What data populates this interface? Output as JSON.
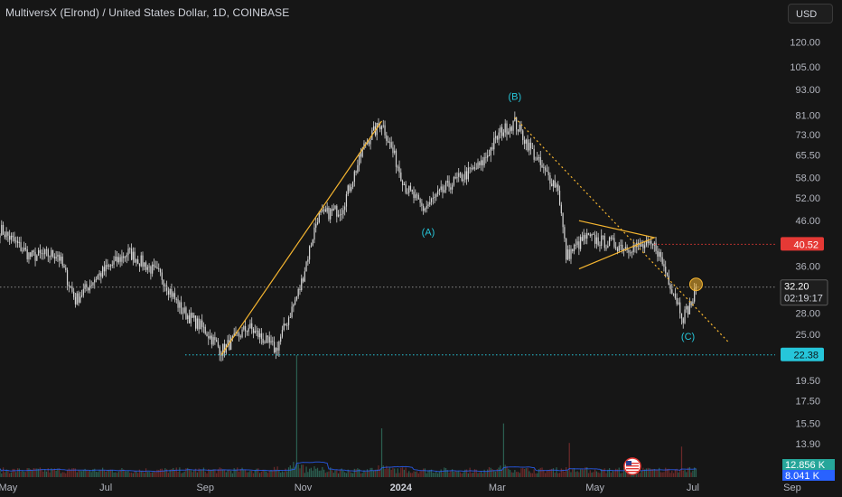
{
  "header": {
    "title": "MultiversX (Elrond) / United States Dollar, 1D, COINBASE",
    "currency_button": "USD"
  },
  "colors": {
    "background": "#161616",
    "candle": "#d6d6d6",
    "drawing": "#f5b530",
    "red_level": "#e53935",
    "cyan_level": "#26c6da",
    "wave_label": "#26c6da"
  },
  "chart_data": {
    "type": "candlestick",
    "symbol": "MultiversX (Elrond) / United States Dollar",
    "interval": "1D",
    "exchange": "COINBASE",
    "scale": "log",
    "ylim": [
      11.5,
      130
    ],
    "y_ticks": [
      "120.00",
      "105.00",
      "93.00",
      "81.00",
      "73.00",
      "65.50",
      "58.00",
      "52.00",
      "46.00",
      "40.52",
      "36.00",
      "32.20",
      "28.00",
      "25.00",
      "22.38",
      "19.50",
      "17.50",
      "15.50",
      "13.90"
    ],
    "x_ticks": [
      "May",
      "Jul",
      "Sep",
      "Nov",
      "2024",
      "Mar",
      "May",
      "Jul",
      "Sep"
    ],
    "xlim": [
      "2023-04-26",
      "2024-10-02"
    ],
    "price_path": [
      [
        "2023-04-26",
        44.0
      ],
      [
        "2023-05-15",
        38.0
      ],
      [
        "2023-06-01",
        38.5
      ],
      [
        "2023-06-12",
        30.0
      ],
      [
        "2023-06-25",
        34.0
      ],
      [
        "2023-07-15",
        38.8
      ],
      [
        "2023-08-05",
        34.0
      ],
      [
        "2023-08-17",
        28.5
      ],
      [
        "2023-09-01",
        25.5
      ],
      [
        "2023-09-11",
        22.9
      ],
      [
        "2023-09-28",
        26.0
      ],
      [
        "2023-10-15",
        23.0
      ],
      [
        "2023-10-30",
        32.0
      ],
      [
        "2023-11-10",
        47.0
      ],
      [
        "2023-11-25",
        49.0
      ],
      [
        "2023-12-10",
        70.0
      ],
      [
        "2023-12-20",
        78.0
      ],
      [
        "2024-01-04",
        55.0
      ],
      [
        "2024-01-15",
        49.0
      ],
      [
        "2024-02-01",
        56.0
      ],
      [
        "2024-02-20",
        62.0
      ],
      [
        "2024-03-03",
        74.0
      ],
      [
        "2024-03-12",
        78.0
      ],
      [
        "2024-03-30",
        60.0
      ],
      [
        "2024-04-08",
        55.0
      ],
      [
        "2024-04-13",
        38.0
      ],
      [
        "2024-04-25",
        42.0
      ],
      [
        "2024-05-20",
        40.0
      ],
      [
        "2024-06-08",
        40.0
      ],
      [
        "2024-06-25",
        27.5
      ],
      [
        "2024-07-01",
        30.0
      ],
      [
        "2024-07-03",
        32.2
      ]
    ],
    "last_price": "32.20",
    "countdown": "02:19:17",
    "levels": [
      {
        "price": 40.52,
        "label": "40.52",
        "color": "#e53935"
      },
      {
        "price": 22.38,
        "label": "22.38",
        "color": "#26c6da"
      }
    ],
    "wave_labels": [
      {
        "text": "(A)",
        "date": "2024-01-18",
        "price": 42.5
      },
      {
        "text": "(B)",
        "date": "2024-03-12",
        "price": 88.0
      },
      {
        "text": "(C)",
        "date": "2024-06-28",
        "price": 24.3
      }
    ],
    "drawings": {
      "impulse_line": [
        [
          "2023-09-11",
          22.38
        ],
        [
          "2023-12-20",
          78.5
        ]
      ],
      "descending_trendline": [
        [
          "2024-03-12",
          80.0
        ],
        [
          "2024-07-23",
          24.0
        ]
      ],
      "triangle": [
        [
          "2024-04-21",
          46.0
        ],
        [
          "2024-06-07",
          42.0
        ],
        [
          "2024-04-21",
          35.5
        ]
      ]
    },
    "volume": {
      "label": "12.856 K",
      "ma_label": "8.041 K",
      "peaks": [
        [
          "2023-10-28",
          1.0
        ],
        [
          "2023-12-20",
          0.4
        ],
        [
          "2024-03-05",
          0.44
        ],
        [
          "2024-04-15",
          0.28
        ],
        [
          "2024-06-24",
          0.25
        ]
      ]
    }
  }
}
